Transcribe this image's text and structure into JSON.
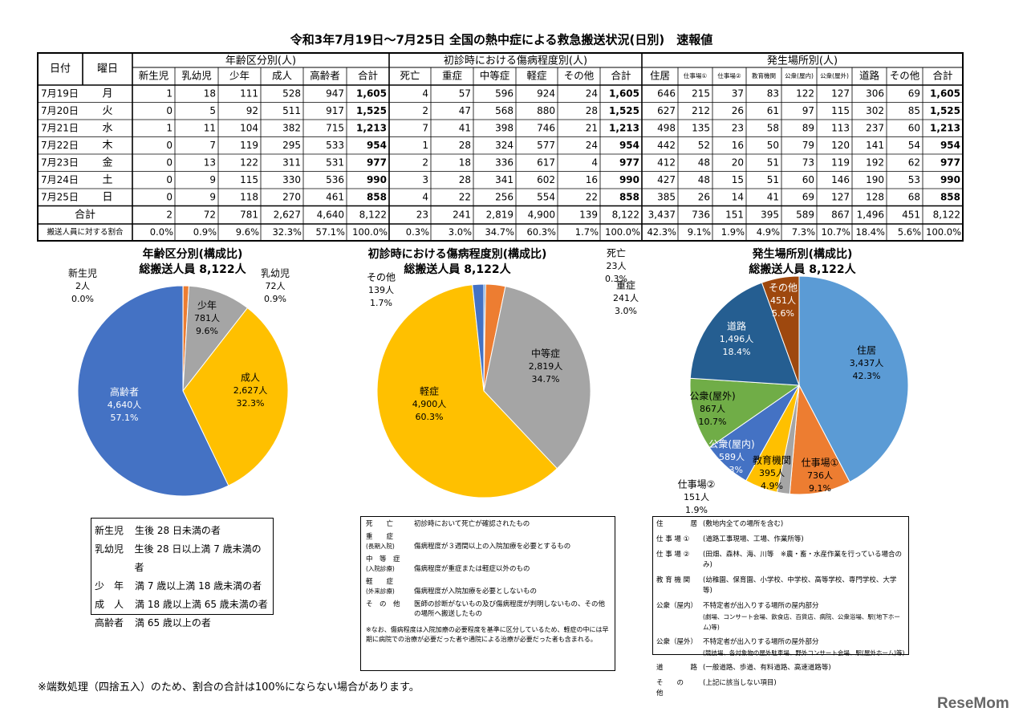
{
  "title": "令和3年7月19日～7月25日 全国の熱中症による救急搬送状況(日別)　速報値",
  "table": {
    "corner": [
      "日付",
      "曜日"
    ],
    "groups": [
      "年齢区分別(人)",
      "初診時における傷病程度別(人)",
      "発生場所別(人)"
    ],
    "columns": [
      "新生児",
      "乳幼児",
      "少年",
      "成人",
      "高齢者",
      "合計",
      "死亡",
      "重症",
      "中等症",
      "軽症",
      "その他",
      "合計",
      "住居",
      "仕事場①",
      "仕事場②",
      "教育機関",
      "公衆(屋内)",
      "公衆(屋外)",
      "道路",
      "その他",
      "合計"
    ],
    "rows": [
      [
        "7月19日",
        "月",
        "1",
        "18",
        "111",
        "528",
        "947",
        "1,605",
        "4",
        "57",
        "596",
        "924",
        "24",
        "1,605",
        "646",
        "215",
        "37",
        "83",
        "122",
        "127",
        "306",
        "69",
        "1,605"
      ],
      [
        "7月20日",
        "火",
        "0",
        "5",
        "92",
        "511",
        "917",
        "1,525",
        "2",
        "47",
        "568",
        "880",
        "28",
        "1,525",
        "627",
        "212",
        "26",
        "61",
        "97",
        "115",
        "302",
        "85",
        "1,525"
      ],
      [
        "7月21日",
        "水",
        "1",
        "11",
        "104",
        "382",
        "715",
        "1,213",
        "7",
        "41",
        "398",
        "746",
        "21",
        "1,213",
        "498",
        "135",
        "23",
        "58",
        "89",
        "113",
        "237",
        "60",
        "1,213"
      ],
      [
        "7月22日",
        "木",
        "0",
        "7",
        "119",
        "295",
        "533",
        "954",
        "1",
        "28",
        "324",
        "577",
        "24",
        "954",
        "442",
        "52",
        "16",
        "50",
        "79",
        "120",
        "141",
        "54",
        "954"
      ],
      [
        "7月23日",
        "金",
        "0",
        "13",
        "122",
        "311",
        "531",
        "977",
        "2",
        "18",
        "336",
        "617",
        "4",
        "977",
        "412",
        "48",
        "20",
        "51",
        "73",
        "119",
        "192",
        "62",
        "977"
      ],
      [
        "7月24日",
        "土",
        "0",
        "9",
        "115",
        "330",
        "536",
        "990",
        "3",
        "28",
        "341",
        "602",
        "16",
        "990",
        "427",
        "48",
        "15",
        "51",
        "60",
        "146",
        "190",
        "53",
        "990"
      ],
      [
        "7月25日",
        "日",
        "0",
        "9",
        "118",
        "270",
        "461",
        "858",
        "4",
        "22",
        "256",
        "554",
        "22",
        "858",
        "385",
        "26",
        "14",
        "41",
        "69",
        "127",
        "128",
        "68",
        "858"
      ]
    ],
    "total": {
      "label": "合計",
      "values": [
        "2",
        "72",
        "781",
        "2,627",
        "4,640",
        "8,122",
        "23",
        "241",
        "2,819",
        "4,900",
        "139",
        "8,122",
        "3,437",
        "736",
        "151",
        "395",
        "589",
        "867",
        "1,496",
        "451",
        "8,122"
      ]
    },
    "ratio": {
      "label": "搬送人員に対する割合",
      "values": [
        "0.0%",
        "0.9%",
        "9.6%",
        "32.3%",
        "57.1%",
        "100.0%",
        "0.3%",
        "3.0%",
        "34.7%",
        "60.3%",
        "1.7%",
        "100.0%",
        "42.3%",
        "9.1%",
        "1.9%",
        "4.9%",
        "7.3%",
        "10.7%",
        "18.4%",
        "5.6%",
        "100.0%"
      ]
    }
  },
  "chart_data": [
    {
      "type": "pie",
      "title": "年齢区分別(構成比)",
      "subtitle": "総搬送人員 8,122人",
      "categories": [
        "新生児",
        "乳幼児",
        "少年",
        "成人",
        "高齢者"
      ],
      "values": [
        2,
        72,
        781,
        2627,
        4640
      ],
      "value_labels": [
        "2人",
        "72人",
        "781人",
        "2,627人",
        "4,640人"
      ],
      "percent_labels": [
        "0.0%",
        "0.9%",
        "9.6%",
        "32.3%",
        "57.1%"
      ],
      "colors": [
        "#5b9bd5",
        "#ed7d31",
        "#a5a5a5",
        "#ffc000",
        "#4472c4"
      ]
    },
    {
      "type": "pie",
      "title": "初診時における傷病程度別(構成比)",
      "subtitle": "総搬送人員 8,122人",
      "categories": [
        "死亡",
        "重症",
        "中等症",
        "軽症",
        "その他"
      ],
      "values": [
        23,
        241,
        2819,
        4900,
        139
      ],
      "value_labels": [
        "23人",
        "241人",
        "2,819人",
        "4,900人",
        "139人"
      ],
      "percent_labels": [
        "0.3%",
        "3.0%",
        "34.7%",
        "60.3%",
        "1.7%"
      ],
      "colors": [
        "#5b9bd5",
        "#ed7d31",
        "#a5a5a5",
        "#ffc000",
        "#4472c4"
      ]
    },
    {
      "type": "pie",
      "title": "発生場所別(構成比)",
      "subtitle": "総搬送人員 8,122人",
      "categories": [
        "住居",
        "仕事場①",
        "仕事場②",
        "教育機関",
        "公衆(屋内)",
        "公衆(屋外)",
        "道路",
        "その他"
      ],
      "values": [
        3437,
        736,
        151,
        395,
        589,
        867,
        1496,
        451
      ],
      "value_labels": [
        "3,437人",
        "736人",
        "151人",
        "395人",
        "589人",
        "867人",
        "1,496人",
        "451人"
      ],
      "percent_labels": [
        "42.3%",
        "9.1%",
        "1.9%",
        "4.9%",
        "7.3%",
        "10.7%",
        "18.4%",
        "5.6%"
      ],
      "colors": [
        "#5b9bd5",
        "#ed7d31",
        "#a5a5a5",
        "#ffc000",
        "#4472c4",
        "#70ad47",
        "#255e91",
        "#9e480e"
      ]
    }
  ],
  "notes": {
    "age": [
      [
        "新生児",
        "生後 28 日未満の者"
      ],
      [
        "乳幼児",
        "生後 28 日以上満 7 歳未満の者"
      ],
      [
        "少　年",
        "満 7 歳以上満 18 歳未満の者"
      ],
      [
        "成　人",
        "満 18 歳以上満 65 歳未満の者"
      ],
      [
        "高齢者",
        "満 65 歳以上の者"
      ]
    ],
    "severity": {
      "rows": [
        [
          "死　　亡",
          "初診時において死亡が確認されたもの"
        ],
        [
          "重　　症",
          "(長期入院)",
          "傷病程度が３週間以上の入院加療を必要とするもの"
        ],
        [
          "中　等　症",
          "(入院診療)",
          "傷病程度が重症または軽症以外のもの"
        ],
        [
          "軽　　症",
          "(外来診療)",
          "傷病程度が入院加療を必要としないもの"
        ],
        [
          "そ　の　他",
          "医師の診断がないもの及び傷病程度が判明しないもの、その他の場所へ搬送したもの"
        ]
      ],
      "remark": "※なお、傷病程度は入院加療の必要程度を基準に区分しているため、軽症の中には早期に病院での治療が必要だった者や通院による治療が必要だった者も含まれる。"
    },
    "location": [
      [
        "住　　　　居",
        "(敷地内全ての場所を含む)"
      ],
      [
        "仕 事 場 ①",
        "(道路工事現場、工場、作業所等)"
      ],
      [
        "仕 事 場 ②",
        "(田畑、森林、海、川等　※農・畜・水産作業を行っている場合のみ)"
      ],
      [
        "教 育 機 関",
        "(幼稚園、保育園、小学校、中学校、高等学校、専門学校、大学等)"
      ],
      [
        "公衆（屋内）",
        "不特定者が出入りする場所の屋内部分",
        "(劇場、コンサート会場、飲食店、百貨店、病院、公衆浴場、駅(地下ホーム)等)"
      ],
      [
        "公衆（屋外）",
        "不特定者が出入りする場所の屋外部分",
        "(競技場、各対象物の屋外駐車場、野外コンサート会場、駅(屋外ホーム)等)"
      ],
      [
        "道　　　　路",
        "(一般道路、歩道、有料道路、高速道路等)"
      ],
      [
        "そ　　の　　他",
        "(上記に該当しない項目)"
      ]
    ]
  },
  "footnote": "※端数処理（四捨五入）のため、割合の合計は100%にならない場合があります。",
  "logo": "ReseMom"
}
